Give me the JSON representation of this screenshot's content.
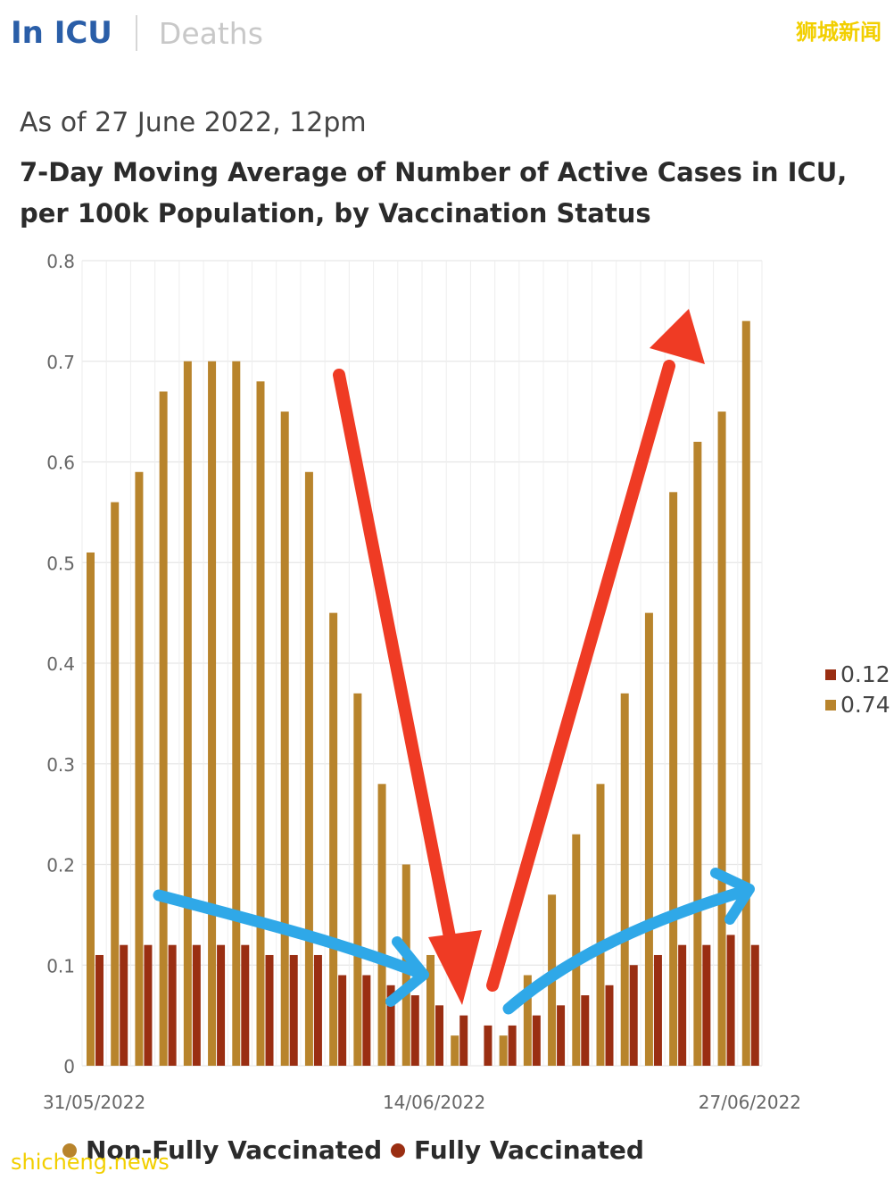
{
  "tabs": {
    "active": "In ICU",
    "inactive": "Deaths"
  },
  "brand": "狮城新闻",
  "watermark": "shicheng.news",
  "subtitle": "As of 27 June 2022, 12pm",
  "colors": {
    "non_fully": "#b8842c",
    "fully": "#9a2e12",
    "grid": "#e6e6e6",
    "axis_text": "#666666",
    "red_arrow": "#ef3b24",
    "blue_arrow": "#2fa8e8"
  },
  "chart_data": {
    "type": "bar",
    "title": "7-Day Moving Average of Number of Active Cases in ICU, per 100k Population, by Vaccination Status",
    "xlabel": "",
    "ylabel": "",
    "ylim": [
      0,
      0.8
    ],
    "yticks": [
      "0",
      "0.1",
      "0.2",
      "0.3",
      "0.4",
      "0.5",
      "0.6",
      "0.7",
      "0.8"
    ],
    "xtick_labels": [
      {
        "index": 0,
        "label": "31/05/2022"
      },
      {
        "index": 14,
        "label": "14/06/2022"
      },
      {
        "index": 27,
        "label": "27/06/2022"
      }
    ],
    "categories": [
      "31/05",
      "01/06",
      "02/06",
      "03/06",
      "04/06",
      "05/06",
      "06/06",
      "07/06",
      "08/06",
      "09/06",
      "10/06",
      "11/06",
      "12/06",
      "13/06",
      "14/06",
      "15/06",
      "16/06",
      "17/06",
      "18/06",
      "19/06",
      "20/06",
      "21/06",
      "22/06",
      "23/06",
      "24/06",
      "25/06",
      "26/06",
      "27/06"
    ],
    "series": [
      {
        "name": "Non-Fully Vaccinated",
        "color": "#b8842c",
        "values": [
          0.51,
          0.56,
          0.59,
          0.67,
          0.7,
          0.7,
          0.7,
          0.68,
          0.65,
          0.59,
          0.45,
          0.37,
          0.28,
          0.2,
          0.11,
          0.03,
          0.0,
          0.03,
          0.09,
          0.17,
          0.23,
          0.28,
          0.37,
          0.45,
          0.57,
          0.62,
          0.65,
          0.74
        ]
      },
      {
        "name": "Fully Vaccinated",
        "color": "#9a2e12",
        "values": [
          0.11,
          0.12,
          0.12,
          0.12,
          0.12,
          0.12,
          0.12,
          0.11,
          0.11,
          0.11,
          0.09,
          0.09,
          0.08,
          0.07,
          0.06,
          0.05,
          0.04,
          0.04,
          0.05,
          0.06,
          0.07,
          0.08,
          0.1,
          0.11,
          0.12,
          0.12,
          0.13,
          0.12
        ]
      }
    ],
    "legend": {
      "placement": "bottom",
      "items": [
        "Non-Fully Vaccinated",
        "Fully Vaccinated"
      ]
    },
    "hover_values": {
      "placement": "right",
      "items": [
        {
          "value": "0.12",
          "series": "Fully Vaccinated"
        },
        {
          "value": "0.74",
          "series": "Non-Fully Vaccinated"
        }
      ]
    }
  }
}
